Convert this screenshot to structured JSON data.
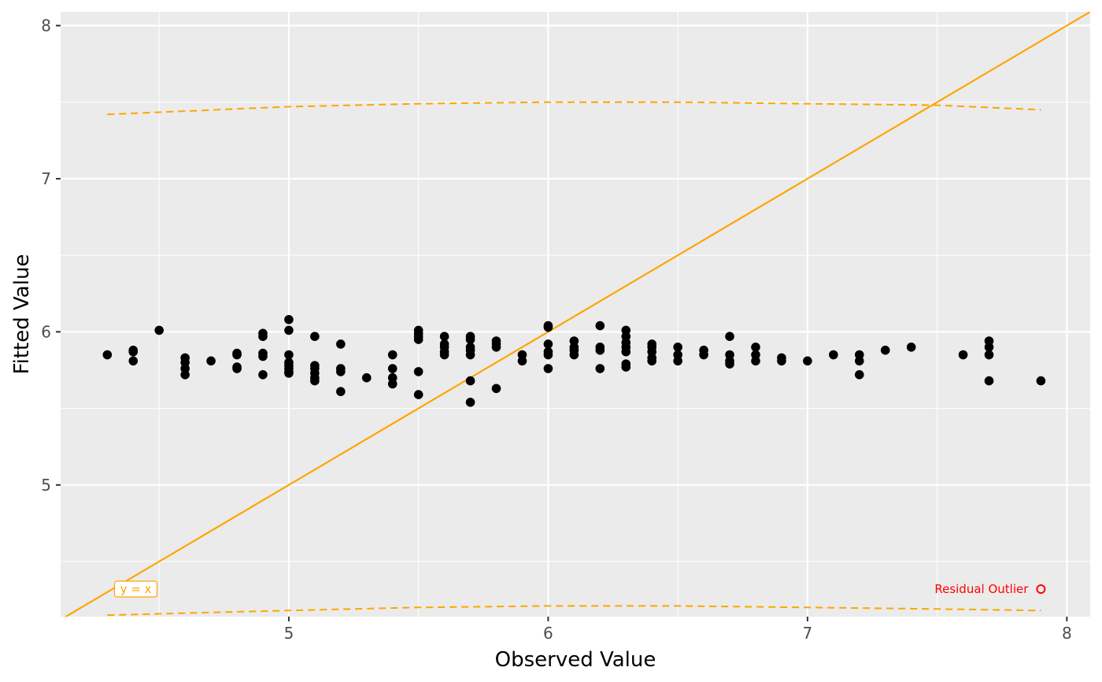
{
  "chart_data": {
    "type": "scatter",
    "title": "",
    "xlabel": "Observed Value",
    "ylabel": "Fitted Value",
    "xlim": [
      4.12,
      8.09
    ],
    "ylim": [
      4.14,
      8.09
    ],
    "x_ticks": [
      5,
      6,
      7,
      8
    ],
    "y_ticks": [
      5,
      6,
      7,
      8
    ],
    "grid": true,
    "background": "#ebebeb",
    "colors": {
      "points": "#000000",
      "reference": "#ffa500",
      "outlier": "#ff0000"
    },
    "points": [
      [
        4.3,
        5.85
      ],
      [
        4.4,
        5.87
      ],
      [
        4.4,
        5.88
      ],
      [
        4.4,
        5.81
      ],
      [
        4.5,
        6.01
      ],
      [
        4.6,
        5.83
      ],
      [
        4.6,
        5.8
      ],
      [
        4.6,
        5.76
      ],
      [
        4.6,
        5.72
      ],
      [
        4.7,
        5.81
      ],
      [
        4.8,
        5.85
      ],
      [
        4.8,
        5.86
      ],
      [
        4.8,
        5.77
      ],
      [
        4.8,
        5.76
      ],
      [
        4.9,
        5.99
      ],
      [
        4.9,
        5.97
      ],
      [
        4.9,
        5.86
      ],
      [
        4.9,
        5.84
      ],
      [
        4.9,
        5.72
      ],
      [
        5.0,
        6.08
      ],
      [
        5.0,
        6.01
      ],
      [
        5.0,
        5.85
      ],
      [
        5.0,
        5.8
      ],
      [
        5.0,
        5.78
      ],
      [
        5.0,
        5.76
      ],
      [
        5.0,
        5.74
      ],
      [
        5.0,
        5.73
      ],
      [
        5.1,
        5.97
      ],
      [
        5.1,
        5.78
      ],
      [
        5.1,
        5.76
      ],
      [
        5.1,
        5.73
      ],
      [
        5.1,
        5.7
      ],
      [
        5.1,
        5.68
      ],
      [
        5.2,
        5.92
      ],
      [
        5.2,
        5.76
      ],
      [
        5.2,
        5.74
      ],
      [
        5.2,
        5.61
      ],
      [
        5.3,
        5.7
      ],
      [
        5.4,
        5.85
      ],
      [
        5.4,
        5.76
      ],
      [
        5.4,
        5.7
      ],
      [
        5.4,
        5.66
      ],
      [
        5.5,
        6.01
      ],
      [
        5.5,
        5.99
      ],
      [
        5.5,
        5.97
      ],
      [
        5.5,
        5.95
      ],
      [
        5.5,
        5.74
      ],
      [
        5.5,
        5.59
      ],
      [
        5.6,
        5.97
      ],
      [
        5.6,
        5.92
      ],
      [
        5.6,
        5.9
      ],
      [
        5.6,
        5.87
      ],
      [
        5.6,
        5.85
      ],
      [
        5.7,
        5.97
      ],
      [
        5.7,
        5.95
      ],
      [
        5.7,
        5.9
      ],
      [
        5.7,
        5.88
      ],
      [
        5.7,
        5.85
      ],
      [
        5.7,
        5.68
      ],
      [
        5.7,
        5.54
      ],
      [
        5.8,
        5.94
      ],
      [
        5.8,
        5.92
      ],
      [
        5.8,
        5.9
      ],
      [
        5.8,
        5.63
      ],
      [
        5.9,
        5.85
      ],
      [
        5.9,
        5.81
      ],
      [
        6.0,
        6.04
      ],
      [
        6.0,
        6.03
      ],
      [
        6.0,
        5.92
      ],
      [
        6.0,
        5.87
      ],
      [
        6.0,
        5.85
      ],
      [
        6.0,
        5.76
      ],
      [
        6.1,
        5.94
      ],
      [
        6.1,
        5.9
      ],
      [
        6.1,
        5.88
      ],
      [
        6.1,
        5.85
      ],
      [
        6.2,
        6.04
      ],
      [
        6.2,
        5.9
      ],
      [
        6.2,
        5.88
      ],
      [
        6.2,
        5.76
      ],
      [
        6.3,
        6.01
      ],
      [
        6.3,
        5.97
      ],
      [
        6.3,
        5.93
      ],
      [
        6.3,
        5.9
      ],
      [
        6.3,
        5.87
      ],
      [
        6.3,
        5.79
      ],
      [
        6.3,
        5.77
      ],
      [
        6.4,
        5.92
      ],
      [
        6.4,
        5.9
      ],
      [
        6.4,
        5.87
      ],
      [
        6.4,
        5.83
      ],
      [
        6.4,
        5.81
      ],
      [
        6.5,
        5.9
      ],
      [
        6.5,
        5.85
      ],
      [
        6.5,
        5.81
      ],
      [
        6.6,
        5.88
      ],
      [
        6.6,
        5.85
      ],
      [
        6.7,
        5.97
      ],
      [
        6.7,
        5.85
      ],
      [
        6.7,
        5.81
      ],
      [
        6.7,
        5.79
      ],
      [
        6.8,
        5.9
      ],
      [
        6.8,
        5.85
      ],
      [
        6.8,
        5.81
      ],
      [
        6.9,
        5.83
      ],
      [
        6.9,
        5.81
      ],
      [
        7.0,
        5.81
      ],
      [
        7.1,
        5.85
      ],
      [
        7.2,
        5.85
      ],
      [
        7.2,
        5.81
      ],
      [
        7.2,
        5.72
      ],
      [
        7.3,
        5.88
      ],
      [
        7.4,
        5.9
      ],
      [
        7.6,
        5.85
      ],
      [
        7.7,
        5.94
      ],
      [
        7.7,
        5.9
      ],
      [
        7.7,
        5.85
      ],
      [
        7.7,
        5.68
      ],
      [
        7.9,
        5.68
      ]
    ],
    "reference_line": {
      "label": "y = x",
      "slope": 1,
      "intercept": 0,
      "label_at": [
        4.41,
        4.32
      ]
    },
    "prediction_band": {
      "x": [
        4.3,
        5.0,
        5.5,
        6.0,
        6.5,
        7.0,
        7.5,
        7.9
      ],
      "upper": [
        7.42,
        7.47,
        7.49,
        7.5,
        7.5,
        7.49,
        7.48,
        7.45
      ],
      "lower": [
        4.15,
        4.18,
        4.2,
        4.21,
        4.21,
        4.2,
        4.19,
        4.18
      ]
    },
    "annotations": [
      {
        "label": "Residual Outlier",
        "x": 7.9,
        "y": 4.32,
        "color": "#ff0000"
      }
    ]
  }
}
